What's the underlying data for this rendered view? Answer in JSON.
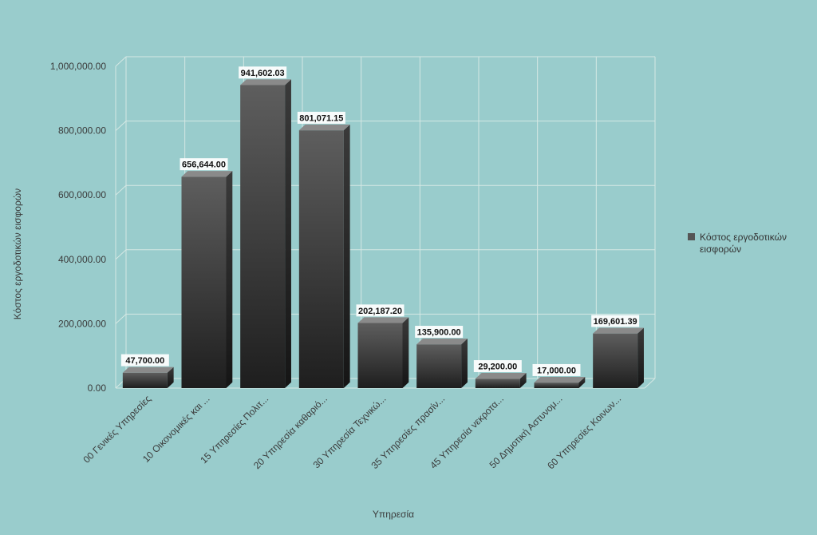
{
  "chart_data": {
    "type": "bar",
    "title": "",
    "xlabel": "Υπηρεσία",
    "ylabel": "Κόστος εργοδοτικών εισφορών",
    "ylim": [
      0,
      1000000
    ],
    "yticks": [
      "0.00",
      "200,000.00",
      "400,000.00",
      "600,000.00",
      "800,000.00",
      "1,000,000.00"
    ],
    "grid": true,
    "legend_position": "right",
    "categories": [
      "00 Γενικές Υπηρεσίες",
      "10 Οικονομικές και ...",
      "15 Υπηρεσίες Πολιτ...",
      "20 Υπηρεσία καθαριό...",
      "30 Υπηρεσία Τεχνικώ...",
      "35 Υπηρεσίες πρασίν...",
      "45 Υπηρεσία νεκροτα...",
      "50 Δημοτική Αστυνομ...",
      "60 Υπηρεσίες Κοινων..."
    ],
    "series": [
      {
        "name": "Κόστος εργοδοτικών εισφορών",
        "legend_lines": [
          "Κόστος εργοδοτικών",
          "εισφορών"
        ],
        "values": [
          47700.0,
          656644.0,
          941602.03,
          801071.15,
          202187.2,
          135900.0,
          29200.0,
          17000.0,
          169601.39
        ],
        "labels": [
          "47,700.00",
          "656,644.00",
          "941,602.03",
          "801,071.15",
          "202,187.20",
          "135,900.00",
          "29,200.00",
          "17,000.00",
          "169,601.39"
        ]
      }
    ]
  },
  "colors": {
    "background": "#99cccc",
    "grid": "#d5e8e4",
    "bar_top": "#5e5e5e",
    "bar_bottom": "#1e1e1e",
    "bar_side": "#2c2c2c",
    "bar_cap": "#8a8a8a",
    "label_bg": "#ffffff"
  }
}
